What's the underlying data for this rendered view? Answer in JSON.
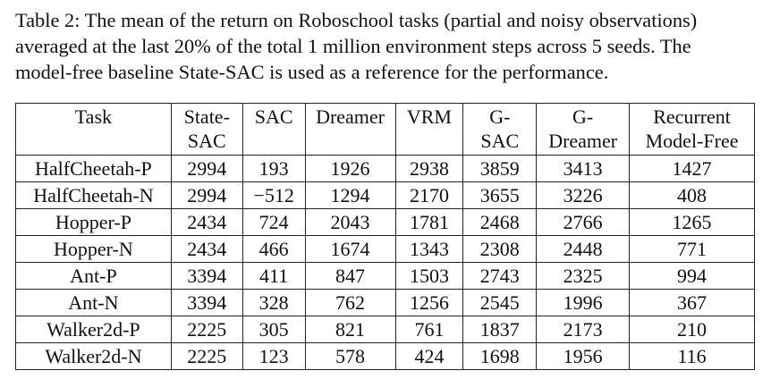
{
  "caption": {
    "lines": [
      "Table 2: The mean of the return on Roboschool tasks (partial and noisy observations)",
      "averaged at the last 20% of the total 1 million environment steps across 5 seeds. The",
      "model-free baseline State-SAC is used as a reference for the performance."
    ]
  },
  "table": {
    "headers": [
      [
        "Task"
      ],
      [
        "State-",
        "SAC"
      ],
      [
        "SAC"
      ],
      [
        "Dreamer"
      ],
      [
        "VRM"
      ],
      [
        "G-",
        "SAC"
      ],
      [
        "G-",
        "Dreamer"
      ],
      [
        "Recurrent",
        "Model-Free"
      ]
    ],
    "rows": [
      {
        "task": "HalfCheetah-P",
        "cells": [
          "2994",
          "193",
          "1926",
          "2938",
          "3859",
          "3413",
          "1427"
        ],
        "bold_index": 4
      },
      {
        "task": "HalfCheetah-N",
        "cells": [
          "2994",
          "−512",
          "1294",
          "2170",
          "3655",
          "3226",
          "408"
        ],
        "bold_index": 4
      },
      {
        "task": "Hopper-P",
        "cells": [
          "2434",
          "724",
          "2043",
          "1781",
          "2468",
          "2766",
          "1265"
        ],
        "bold_index": 5
      },
      {
        "task": "Hopper-N",
        "cells": [
          "2434",
          "466",
          "1674",
          "1343",
          "2308",
          "2448",
          "771"
        ],
        "bold_index": 5
      },
      {
        "task": "Ant-P",
        "cells": [
          "3394",
          "411",
          "847",
          "1503",
          "2743",
          "2325",
          "994"
        ],
        "bold_index": 4
      },
      {
        "task": "Ant-N",
        "cells": [
          "3394",
          "328",
          "762",
          "1256",
          "2545",
          "1996",
          "367"
        ],
        "bold_index": 4
      },
      {
        "task": "Walker2d-P",
        "cells": [
          "2225",
          "305",
          "821",
          "761",
          "1837",
          "2173",
          "210"
        ],
        "bold_index": 5
      },
      {
        "task": "Walker2d-N",
        "cells": [
          "2225",
          "123",
          "578",
          "424",
          "1698",
          "1956",
          "116"
        ],
        "bold_index": 5
      }
    ]
  }
}
